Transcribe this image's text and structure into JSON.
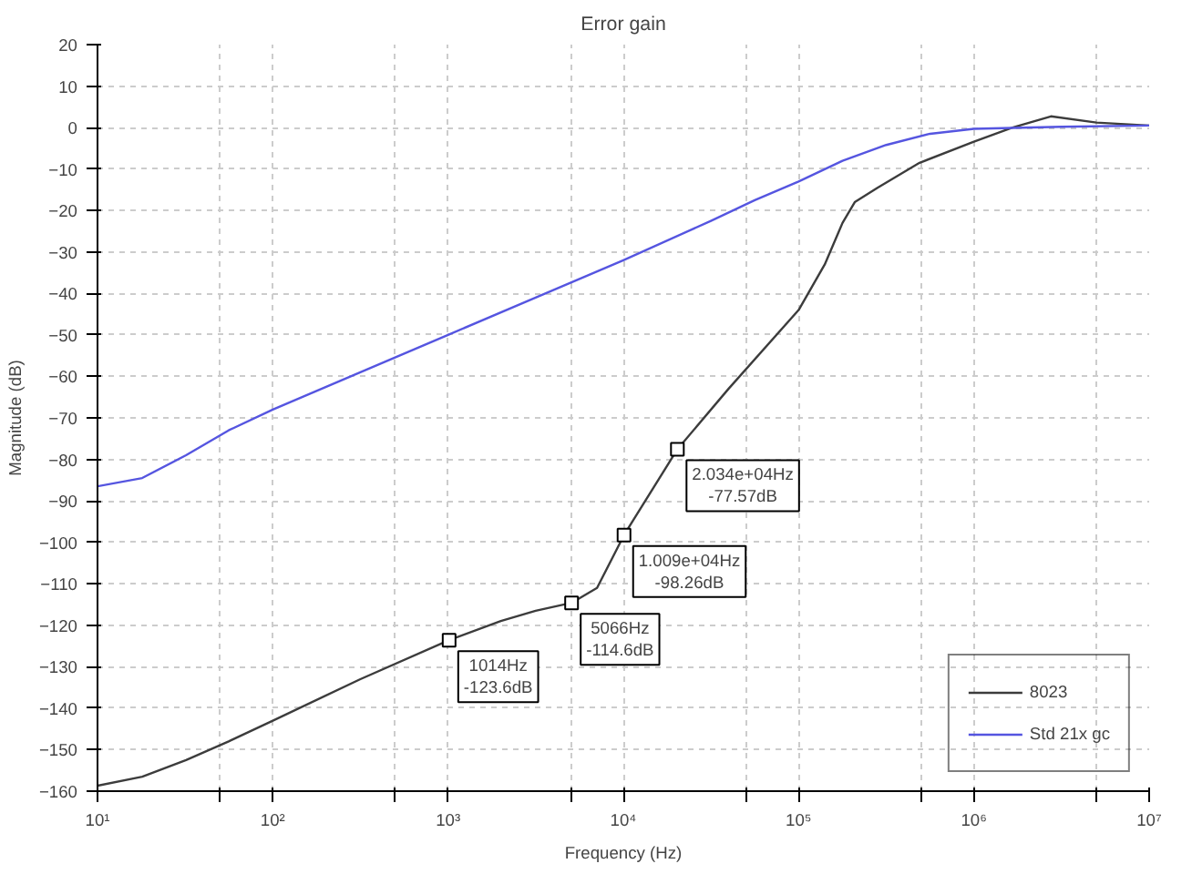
{
  "chart_data": {
    "type": "line",
    "title": "Error gain",
    "xlabel": "Frequency (Hz)",
    "ylabel": "Magnitude (dB)",
    "log": "x",
    "xlim": [
      10,
      10000000
    ],
    "xticks": [
      {
        "value": 10,
        "label": "10¹"
      },
      {
        "value": 50,
        "label": null
      },
      {
        "value": 100,
        "label": "10²"
      },
      {
        "value": 500,
        "label": null
      },
      {
        "value": 1000,
        "label": "10³"
      },
      {
        "value": 5000,
        "label": null
      },
      {
        "value": 10000,
        "label": "10⁴"
      },
      {
        "value": 50000,
        "label": null
      },
      {
        "value": 100000,
        "label": "10⁵"
      },
      {
        "value": 500000,
        "label": null
      },
      {
        "value": 1000000,
        "label": "10⁶"
      },
      {
        "value": 5000000,
        "label": null
      },
      {
        "value": 10000000,
        "label": "10⁷"
      }
    ],
    "ylim": [
      -160,
      20
    ],
    "yticks": [
      -160,
      -150,
      -140,
      -130,
      -120,
      -110,
      -100,
      -90,
      -80,
      -70,
      -60,
      -50,
      -40,
      -30,
      -20,
      -10,
      0,
      10,
      20
    ],
    "grid": true,
    "legend": "bottom right",
    "marker": "none",
    "line_style": "solid",
    "series": [
      {
        "name": "8023",
        "color": "#3c3c3c",
        "x": [
          10,
          18,
          32,
          56,
          100,
          316,
          1014,
          2000,
          3160,
          5066,
          7080,
          10090,
          20340,
          39800,
          100000,
          141000,
          178000,
          209000,
          282000,
          490000,
          1000000,
          1660000,
          2750000,
          5000000,
          10000000
        ],
        "values": [
          -158.7,
          -156.5,
          -152.5,
          -148,
          -143,
          -133,
          -123.6,
          -119,
          -116.5,
          -114.6,
          -111,
          -98.26,
          -77.57,
          -63,
          -44,
          -33,
          -23,
          -18,
          -14.5,
          -8.5,
          -3.4,
          0,
          2.7,
          1.2,
          0.5
        ]
      },
      {
        "name": "Std 21x gc",
        "color": "#5555e0",
        "x": [
          10,
          18,
          32,
          56,
          100,
          316,
          1000,
          3160,
          10000,
          31600,
          56200,
          100000,
          178000,
          316000,
          562000,
          1000000,
          3160000,
          10000000
        ],
        "values": [
          -86.5,
          -84.5,
          -79,
          -73,
          -68,
          -59,
          -50,
          -41,
          -32,
          -22.5,
          -17.5,
          -13,
          -8,
          -4.2,
          -1.5,
          -0.3,
          0.2,
          0.5
        ]
      }
    ],
    "annotations": [
      {
        "text": "1014Hz\n-123.6dB",
        "x": 1014,
        "y": -123.6
      },
      {
        "text": "5066Hz\n-114.6dB",
        "x": 5066,
        "y": -114.6
      },
      {
        "text": "1.009e+04Hz\n-98.26dB",
        "x": 10090,
        "y": -98.26
      },
      {
        "text": "2.034e+04Hz\n-77.57dB",
        "x": 20340,
        "y": -77.57
      }
    ]
  }
}
